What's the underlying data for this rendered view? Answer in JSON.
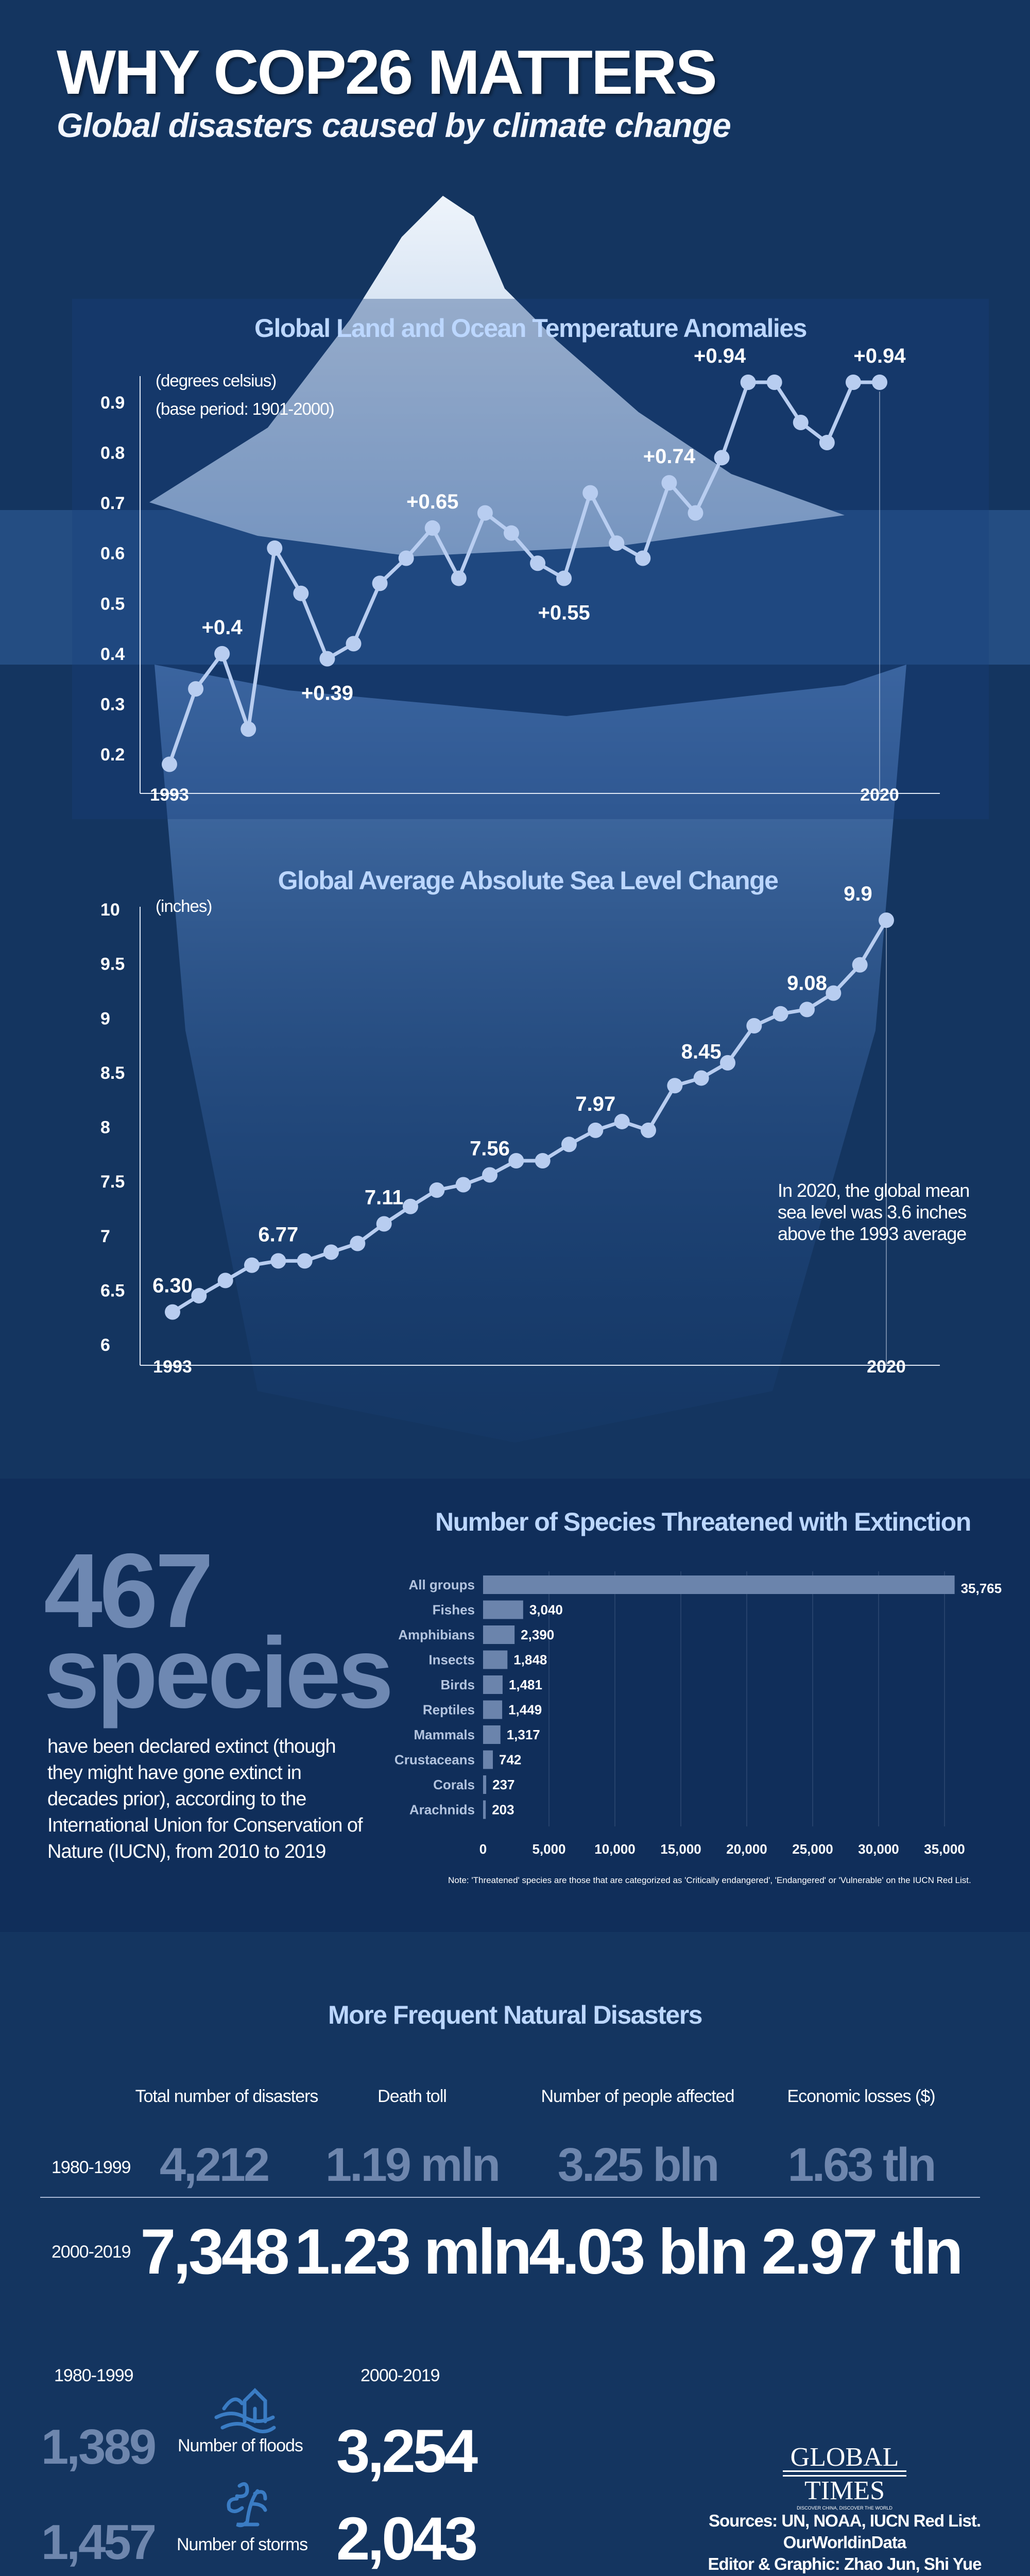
{
  "header": {
    "title": "WHY COP26 MATTERS",
    "subtitle": "Global disasters caused by climate change"
  },
  "colors": {
    "line": "#b8cdf0",
    "bar": "#6b84ac",
    "chart_title": "#bcd7ff",
    "dim_number": "#6e86ad"
  },
  "chart_data": [
    {
      "type": "line",
      "title": "Global Land and Ocean Temperature Anomalies",
      "unit_label": "(degrees celsius)",
      "note": "(base period: 1901-2000)",
      "x": [
        1993,
        1994,
        1995,
        1996,
        1997,
        1998,
        1999,
        2000,
        2001,
        2002,
        2003,
        2004,
        2005,
        2006,
        2007,
        2008,
        2009,
        2010,
        2011,
        2012,
        2013,
        2014,
        2015,
        2016,
        2017,
        2018,
        2019,
        2020
      ],
      "values": [
        0.18,
        0.33,
        0.4,
        0.25,
        0.61,
        0.52,
        0.39,
        0.42,
        0.54,
        0.59,
        0.65,
        0.55,
        0.68,
        0.64,
        0.58,
        0.55,
        0.72,
        0.62,
        0.59,
        0.74,
        0.68,
        0.79,
        0.94,
        0.94,
        0.86,
        0.82,
        0.94,
        0.94
      ],
      "point_labels": [
        {
          "index": 2,
          "text": "+0.4"
        },
        {
          "index": 6,
          "text": "+0.39"
        },
        {
          "index": 10,
          "text": "+0.65"
        },
        {
          "index": 15,
          "text": "+0.55"
        },
        {
          "index": 19,
          "text": "+0.74"
        },
        {
          "index": 22,
          "text": "+0.94"
        },
        {
          "index": 27,
          "text": "+0.94"
        }
      ],
      "yticks": [
        "0.2",
        "0.3",
        "0.4",
        "0.5",
        "0.6",
        "0.7",
        "0.8",
        "0.9"
      ],
      "xtick_labels": [
        "1993",
        "2020"
      ],
      "ylim": [
        0.2,
        0.9
      ]
    },
    {
      "type": "line",
      "title": "Global Average Absolute Sea Level Change",
      "unit_label": "(inches)",
      "x": [
        1993,
        1994,
        1995,
        1996,
        1997,
        1998,
        1999,
        2000,
        2001,
        2002,
        2003,
        2004,
        2005,
        2006,
        2007,
        2008,
        2009,
        2010,
        2011,
        2012,
        2013,
        2014,
        2015,
        2016,
        2017,
        2018,
        2019,
        2020
      ],
      "values": [
        6.3,
        6.45,
        6.59,
        6.73,
        6.77,
        6.77,
        6.85,
        6.93,
        7.11,
        7.27,
        7.42,
        7.47,
        7.56,
        7.69,
        7.69,
        7.84,
        7.97,
        8.05,
        7.97,
        8.38,
        8.45,
        8.59,
        8.93,
        9.04,
        9.08,
        9.23,
        9.49,
        9.9
      ],
      "point_labels": [
        {
          "index": 0,
          "text": "6.30"
        },
        {
          "index": 4,
          "text": "6.77"
        },
        {
          "index": 8,
          "text": "7.11"
        },
        {
          "index": 12,
          "text": "7.56"
        },
        {
          "index": 16,
          "text": "7.97"
        },
        {
          "index": 20,
          "text": "8.45"
        },
        {
          "index": 24,
          "text": "9.08"
        },
        {
          "index": 27,
          "text": "9.9"
        }
      ],
      "yticks": [
        "6",
        "6.5",
        "7",
        "7.5",
        "8",
        "8.5",
        "9",
        "9.5",
        "10"
      ],
      "xtick_labels": [
        "1993",
        "2020"
      ],
      "ylim": [
        6,
        10
      ],
      "annotation": [
        "In 2020, the global mean",
        "sea level was 3.6 inches",
        "above the 1993 average"
      ]
    },
    {
      "type": "bar",
      "orientation": "horizontal",
      "title": "Number of Species Threatened with Extinction",
      "categories": [
        "All groups",
        "Fishes",
        "Amphibians",
        "Insects",
        "Birds",
        "Reptiles",
        "Mammals",
        "Crustaceans",
        "Corals",
        "Arachnids"
      ],
      "values": [
        35765,
        3040,
        2390,
        1848,
        1481,
        1449,
        1317,
        742,
        237,
        203
      ],
      "value_labels": [
        "35,765",
        "3,040",
        "2,390",
        "1,848",
        "1,481",
        "1,449",
        "1,317",
        "742",
        "237",
        "203"
      ],
      "xticks": [
        "0",
        "5,000",
        "10,000",
        "15,000",
        "20,000",
        "25,000",
        "30,000",
        "35,000"
      ],
      "xlim": [
        0,
        35000
      ],
      "note": "Note: 'Threatened' species are those that are categorized as 'Critically endangered', 'Endangered' or 'Vulnerable' on the IUCN Red List."
    }
  ],
  "extinct": {
    "number": "467",
    "word": "species",
    "text": "have been declared extinct (though they might have gone extinct in decades prior), according to the International Union for Conservation of Nature (IUCN), from 2010 to 2019"
  },
  "disasters": {
    "title": "More Frequent Natural Disasters",
    "headers": [
      "Total number of disasters",
      "Death toll",
      "Number of people affected",
      "Economic losses ($)"
    ],
    "rows": [
      {
        "period": "1980-1999",
        "values": [
          "4,212",
          "1.19 mln",
          "3.25 bln",
          "1.63 tln"
        ]
      },
      {
        "period": "2000-2019",
        "values": [
          "7,348",
          "1.23 mln",
          "4.03 bln",
          "2.97 tln"
        ]
      }
    ],
    "compare": {
      "period_old": "1980-1999",
      "period_new": "2000-2019",
      "items": [
        {
          "label": "Number of floods",
          "icon": "flood-icon",
          "old": "1,389",
          "new": "3,254"
        },
        {
          "label": "Number of storms",
          "icon": "storm-icon",
          "old": "1,457",
          "new": "2,043"
        }
      ]
    }
  },
  "footer": {
    "logo_top": "GLOBAL",
    "logo_bottom": "TIMES",
    "logo_tagline": "DISCOVER CHINA, DISCOVER THE WORLD",
    "sources": [
      "Sources: UN, NOAA, IUCN Red List.",
      "OurWorldinData",
      "Editor & Graphic: Zhao Jun, Shi Yue"
    ]
  }
}
